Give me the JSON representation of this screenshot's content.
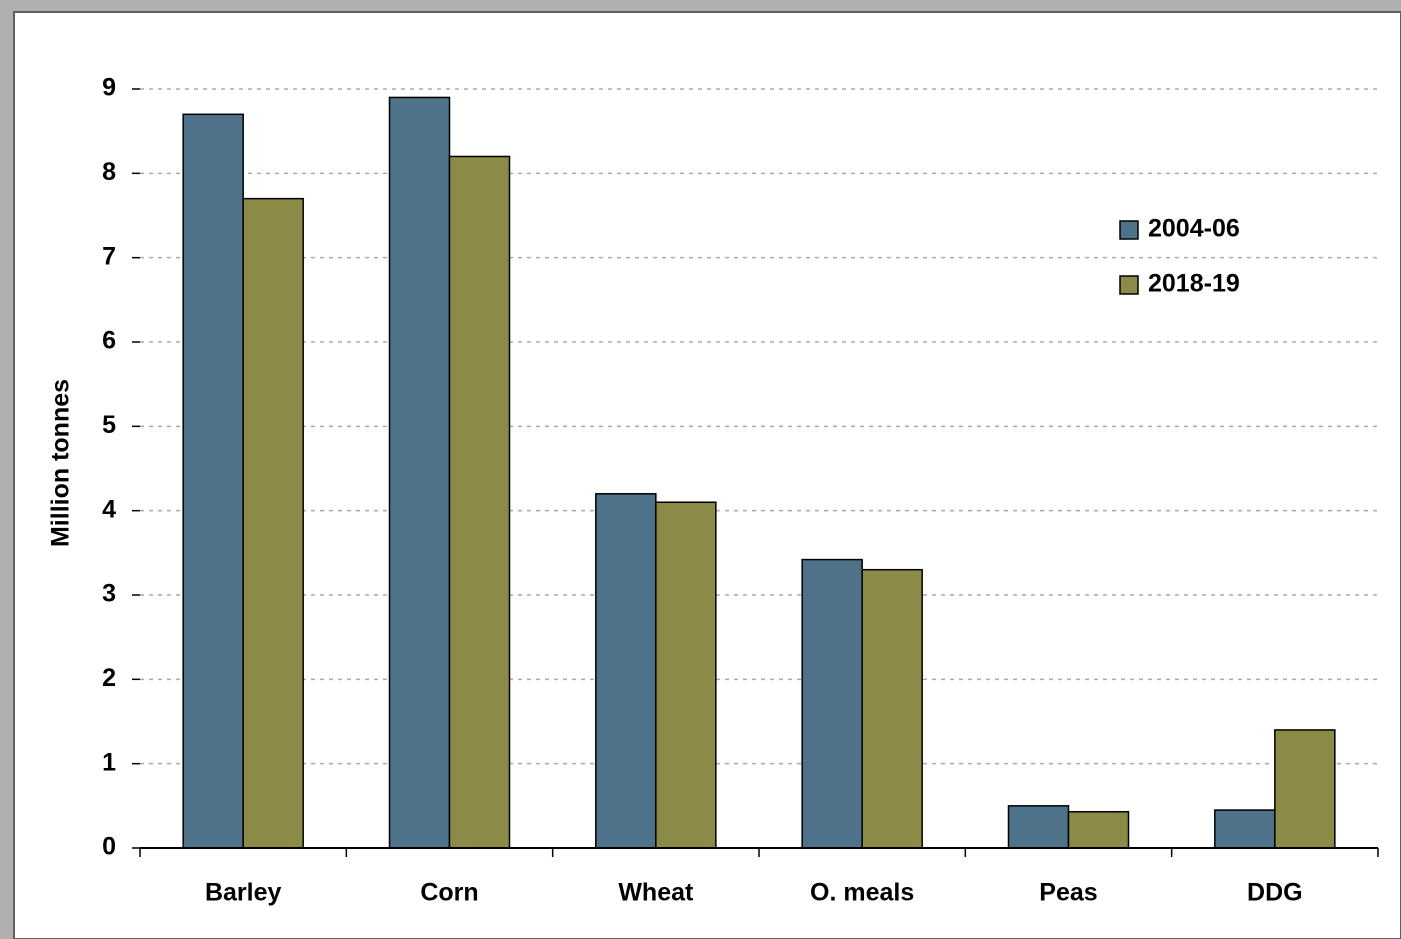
{
  "chart_data": {
    "type": "bar",
    "y_label": "Million tonnes",
    "categories": [
      "Barley",
      "Corn",
      "Wheat",
      "O. meals",
      "Peas",
      "DDG"
    ],
    "series": [
      {
        "name": "2004-06",
        "color": "#4e7289",
        "values": [
          8.7,
          8.9,
          4.2,
          3.42,
          0.5,
          0.45
        ]
      },
      {
        "name": "2018-19",
        "color": "#8b8a46",
        "values": [
          7.7,
          8.2,
          4.1,
          3.3,
          0.43,
          1.4
        ]
      }
    ],
    "ylim": [
      0,
      9
    ],
    "yticks": [
      0,
      1,
      2,
      3,
      4,
      5,
      6,
      7,
      8,
      9
    ],
    "grid": true,
    "legend": "upper right"
  }
}
